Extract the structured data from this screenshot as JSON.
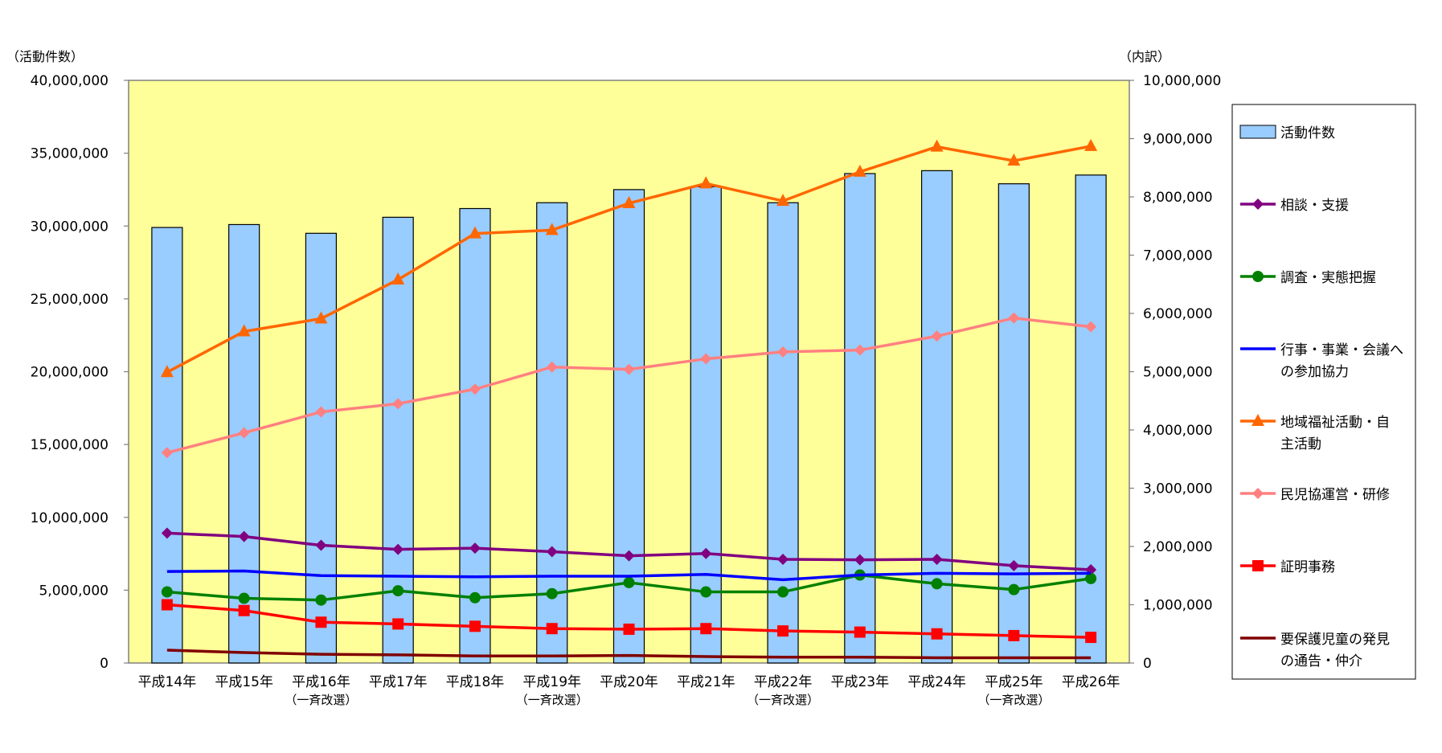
{
  "chart_data": {
    "type": "bar",
    "y_left_label": "（活動件数）",
    "y_right_label": "（内訳）",
    "y_left_lim": [
      0,
      40000000
    ],
    "y_left_ticks": [
      "0",
      "5,000,000",
      "10,000,000",
      "15,000,000",
      "20,000,000",
      "25,000,000",
      "30,000,000",
      "35,000,000",
      "40,000,000"
    ],
    "y_right_lim": [
      0,
      10000000
    ],
    "y_right_ticks": [
      "0",
      "1,000,000",
      "2,000,000",
      "3,000,000",
      "4,000,000",
      "5,000,000",
      "6,000,000",
      "7,000,000",
      "8,000,000",
      "9,000,000",
      "10,000,000"
    ],
    "categories": [
      "平成14年",
      "平成15年",
      "平成16年",
      "平成17年",
      "平成18年",
      "平成19年",
      "平成20年",
      "平成21年",
      "平成22年",
      "平成23年",
      "平成24年",
      "平成25年",
      "平成26年"
    ],
    "category_notes": [
      "",
      "",
      "（一斉改選）",
      "",
      "",
      "（一斉改選）",
      "",
      "",
      "（一斉改選）",
      "",
      "",
      "（一斉改選）",
      ""
    ],
    "grid": false,
    "legend_position": "right",
    "plot_background": "#ffff99",
    "bar_series": {
      "name": "活動件数",
      "axis": "left",
      "color": "#99ccff",
      "values": [
        29900000,
        30100000,
        29500000,
        30600000,
        31200000,
        31600000,
        32500000,
        32700000,
        31600000,
        33600000,
        33800000,
        32900000,
        33500000
      ]
    },
    "line_series": [
      {
        "name": "相談・支援",
        "axis": "right",
        "color": "#800080",
        "marker": "diamond",
        "values": [
          2230000,
          2170000,
          2020000,
          1950000,
          1970000,
          1910000,
          1840000,
          1880000,
          1780000,
          1770000,
          1780000,
          1670000,
          1600000
        ]
      },
      {
        "name": "調査・実態把握",
        "axis": "right",
        "color": "#008000",
        "marker": "circle",
        "values": [
          1220000,
          1110000,
          1080000,
          1240000,
          1120000,
          1190000,
          1380000,
          1220000,
          1220000,
          1510000,
          1360000,
          1260000,
          1450000
        ]
      },
      {
        "name": "行事・事業・会議への参加協力",
        "axis": "right",
        "color": "#0000ff",
        "marker": "none",
        "values": [
          1570000,
          1580000,
          1500000,
          1490000,
          1480000,
          1490000,
          1490000,
          1520000,
          1430000,
          1510000,
          1540000,
          1530000,
          1540000
        ]
      },
      {
        "name": "地域福祉活動・自主活動",
        "axis": "right",
        "color": "#ff6600",
        "marker": "triangle",
        "values": [
          4990000,
          5690000,
          5910000,
          6580000,
          7370000,
          7430000,
          7890000,
          8230000,
          7930000,
          8430000,
          8860000,
          8620000,
          8870000
        ]
      },
      {
        "name": "民児協運営・研修",
        "axis": "right",
        "color": "#ff8080",
        "marker": "diamond",
        "values": [
          3610000,
          3950000,
          4310000,
          4450000,
          4700000,
          5080000,
          5040000,
          5220000,
          5340000,
          5370000,
          5610000,
          5920000,
          5770000
        ]
      },
      {
        "name": "証明事務",
        "axis": "right",
        "color": "#ff0000",
        "marker": "square",
        "values": [
          1000000,
          900000,
          700000,
          670000,
          630000,
          590000,
          580000,
          590000,
          550000,
          530000,
          500000,
          470000,
          440000
        ]
      },
      {
        "name": "要保護児童の発見の通告・仲介",
        "axis": "right",
        "color": "#800000",
        "marker": "none",
        "values": [
          220000,
          180000,
          150000,
          140000,
          120000,
          120000,
          130000,
          110000,
          100000,
          100000,
          90000,
          90000,
          90000
        ]
      }
    ],
    "legend_lines": [
      [
        "活動件数"
      ],
      [
        "相談・支援"
      ],
      [
        "調査・実態把握"
      ],
      [
        "行事・事業・会議へ",
        "の参加協力"
      ],
      [
        "地域福祉活動・自",
        "主活動"
      ],
      [
        "民児協運営・研修"
      ],
      [
        "証明事務"
      ],
      [
        "要保護児童の発見",
        "の通告・仲介"
      ]
    ]
  }
}
